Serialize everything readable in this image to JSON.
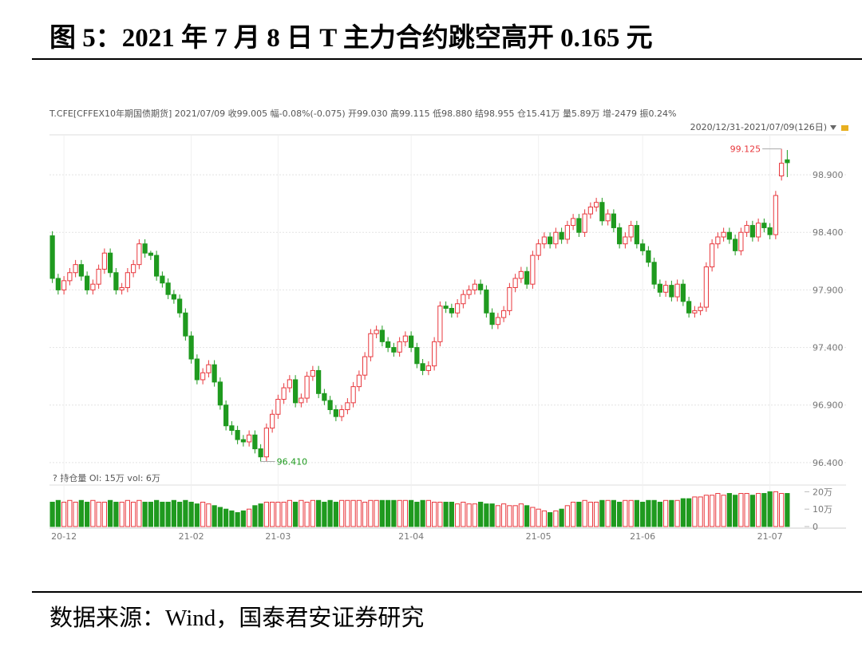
{
  "header": {
    "title": "图 5：2021 年 7 月 8 日 T 主力合约跳空高开 0.165 元"
  },
  "chart_data": {
    "type": "candlestick",
    "info": "T.CFE[CFFEX10年期国债期货]   2021/07/09  收99.005  幅-0.08%(-0.075)  开99.030  高99.115  低98.880  结98.955  仓15.41万  量5.89万  增-2479  振0.24%",
    "range": "2020/12/31-2021/07/09(126日)",
    "volume_title": "?  持仓量 OI: 15万  vol: 6万",
    "up_color": "#e8383d",
    "down_color": "#1f9a1f",
    "grid": true,
    "categories": [
      null,
      null,
      "20-12",
      null,
      null,
      null,
      null,
      null,
      null,
      null,
      null,
      null,
      null,
      null,
      null,
      null,
      null,
      null,
      null,
      null,
      null,
      null,
      null,
      null,
      "21-02",
      null,
      null,
      null,
      null,
      null,
      null,
      null,
      null,
      null,
      null,
      null,
      null,
      null,
      null,
      "21-03",
      null,
      null,
      null,
      null,
      null,
      null,
      null,
      null,
      null,
      null,
      null,
      null,
      null,
      null,
      null,
      null,
      null,
      null,
      null,
      null,
      null,
      null,
      "21-04",
      null,
      null,
      null,
      null,
      null,
      null,
      null,
      null,
      null,
      null,
      null,
      null,
      null,
      null,
      null,
      null,
      null,
      null,
      null,
      null,
      null,
      "21-05",
      null,
      null,
      null,
      null,
      null,
      null,
      null,
      null,
      null,
      null,
      null,
      null,
      null,
      null,
      null,
      null,
      null,
      "21-06",
      null,
      null,
      null,
      null,
      null,
      null,
      null,
      null,
      null,
      null,
      null,
      null,
      null,
      null,
      null,
      null,
      null,
      null,
      null,
      null,
      null,
      "21-07",
      null,
      null,
      null
    ],
    "open": [
      98.37,
      98.0,
      97.9,
      97.98,
      98.05,
      98.12,
      98.02,
      97.9,
      97.95,
      98.08,
      98.22,
      98.05,
      97.9,
      97.92,
      98.05,
      98.12,
      98.3,
      98.22,
      98.2,
      98.02,
      97.96,
      97.86,
      97.82,
      97.7,
      97.5,
      97.3,
      97.12,
      97.18,
      97.25,
      97.1,
      96.9,
      96.72,
      96.68,
      96.6,
      96.58,
      96.64,
      96.52,
      96.45,
      96.7,
      96.82,
      96.95,
      97.05,
      97.12,
      96.92,
      96.96,
      97.15,
      97.2,
      97.0,
      96.94,
      96.86,
      96.8,
      96.86,
      96.92,
      97.06,
      97.16,
      97.32,
      97.52,
      97.55,
      97.45,
      97.4,
      97.36,
      97.45,
      97.5,
      97.4,
      97.26,
      97.2,
      97.24,
      97.45,
      97.76,
      97.74,
      97.7,
      97.78,
      97.86,
      97.9,
      97.95,
      97.9,
      97.7,
      97.6,
      97.66,
      97.72,
      97.92,
      98.0,
      98.06,
      97.95,
      98.2,
      98.3,
      98.36,
      98.3,
      98.4,
      98.34,
      98.46,
      98.52,
      98.4,
      98.56,
      98.62,
      98.66,
      98.5,
      98.56,
      98.44,
      98.3,
      98.36,
      98.46,
      98.3,
      98.24,
      98.14,
      97.95,
      97.88,
      97.94,
      97.84,
      97.95,
      97.8,
      97.7,
      97.72,
      97.75,
      98.1,
      98.3,
      98.36,
      98.4,
      98.34,
      98.24,
      98.4,
      98.46,
      98.36,
      98.48,
      98.44,
      98.38,
      98.89,
      99.03
    ],
    "high": [
      98.41,
      98.04,
      98.02,
      98.09,
      98.16,
      98.16,
      98.06,
      97.99,
      98.12,
      98.26,
      98.26,
      98.09,
      97.96,
      98.09,
      98.16,
      98.34,
      98.34,
      98.24,
      98.24,
      98.06,
      98.0,
      97.9,
      97.86,
      97.74,
      97.54,
      97.34,
      97.22,
      97.29,
      97.29,
      97.14,
      96.94,
      96.76,
      96.72,
      96.64,
      96.68,
      96.68,
      96.56,
      96.74,
      96.86,
      96.99,
      97.09,
      97.16,
      97.16,
      97.0,
      97.19,
      97.24,
      97.24,
      97.04,
      96.98,
      96.9,
      96.9,
      96.96,
      97.1,
      97.2,
      97.36,
      97.56,
      97.59,
      97.59,
      97.49,
      97.44,
      97.49,
      97.54,
      97.54,
      97.44,
      97.3,
      97.28,
      97.49,
      97.8,
      97.8,
      97.78,
      97.82,
      97.9,
      97.94,
      97.99,
      97.99,
      97.94,
      97.74,
      97.7,
      97.76,
      97.96,
      98.04,
      98.1,
      98.1,
      98.24,
      98.34,
      98.4,
      98.4,
      98.44,
      98.44,
      98.5,
      98.56,
      98.56,
      98.6,
      98.66,
      98.7,
      98.7,
      98.6,
      98.6,
      98.48,
      98.4,
      98.5,
      98.5,
      98.34,
      98.28,
      98.18,
      97.99,
      97.98,
      97.98,
      97.99,
      97.99,
      97.84,
      97.76,
      97.79,
      98.14,
      98.34,
      98.4,
      98.44,
      98.44,
      98.38,
      98.44,
      98.5,
      98.5,
      98.52,
      98.52,
      98.48,
      98.76,
      99.125,
      99.115
    ],
    "low": [
      97.96,
      97.86,
      97.86,
      97.94,
      98.01,
      97.98,
      97.86,
      97.86,
      97.91,
      98.04,
      98.01,
      97.86,
      97.86,
      97.88,
      98.01,
      98.08,
      98.18,
      98.16,
      97.98,
      97.92,
      97.82,
      97.78,
      97.66,
      97.46,
      97.26,
      97.08,
      97.08,
      97.14,
      97.06,
      96.86,
      96.68,
      96.64,
      96.56,
      96.54,
      96.54,
      96.48,
      96.41,
      96.41,
      96.66,
      96.78,
      96.91,
      97.01,
      96.88,
      96.88,
      96.92,
      97.11,
      96.96,
      96.9,
      96.82,
      96.76,
      96.76,
      96.82,
      96.88,
      97.02,
      97.12,
      97.28,
      97.48,
      97.41,
      97.36,
      97.32,
      97.32,
      97.41,
      97.36,
      97.22,
      97.16,
      97.16,
      97.2,
      97.41,
      97.7,
      97.66,
      97.66,
      97.74,
      97.82,
      97.86,
      97.86,
      97.66,
      97.56,
      97.56,
      97.62,
      97.68,
      97.88,
      97.96,
      97.91,
      97.91,
      98.16,
      98.26,
      98.26,
      98.26,
      98.3,
      98.3,
      98.42,
      98.36,
      98.36,
      98.52,
      98.58,
      98.46,
      98.46,
      98.4,
      98.26,
      98.26,
      98.32,
      98.26,
      98.2,
      98.1,
      97.91,
      97.84,
      97.84,
      97.8,
      97.8,
      97.76,
      97.66,
      97.66,
      97.68,
      97.71,
      98.06,
      98.26,
      98.32,
      98.3,
      98.2,
      98.2,
      98.36,
      98.32,
      98.32,
      98.4,
      98.34,
      98.34,
      98.85,
      98.88
    ],
    "close": [
      98.0,
      97.9,
      97.98,
      98.05,
      98.12,
      98.02,
      97.9,
      97.95,
      98.08,
      98.22,
      98.05,
      97.9,
      97.92,
      98.05,
      98.12,
      98.3,
      98.22,
      98.2,
      98.02,
      97.96,
      97.86,
      97.82,
      97.7,
      97.5,
      97.3,
      97.12,
      97.18,
      97.25,
      97.1,
      96.9,
      96.72,
      96.68,
      96.6,
      96.58,
      96.64,
      96.52,
      96.45,
      96.7,
      96.82,
      96.95,
      97.05,
      97.12,
      96.92,
      96.96,
      97.15,
      97.2,
      97.0,
      96.94,
      96.86,
      96.8,
      96.86,
      96.92,
      97.06,
      97.16,
      97.32,
      97.52,
      97.55,
      97.45,
      97.4,
      97.36,
      97.45,
      97.5,
      97.4,
      97.26,
      97.2,
      97.24,
      97.45,
      97.76,
      97.74,
      97.7,
      97.78,
      97.86,
      97.9,
      97.95,
      97.9,
      97.7,
      97.6,
      97.66,
      97.72,
      97.92,
      98.0,
      98.06,
      97.95,
      98.2,
      98.3,
      98.36,
      98.3,
      98.4,
      98.34,
      98.46,
      98.52,
      98.4,
      98.56,
      98.62,
      98.66,
      98.5,
      98.56,
      98.44,
      98.3,
      98.36,
      98.46,
      98.3,
      98.24,
      98.14,
      97.95,
      97.88,
      97.94,
      97.84,
      97.95,
      97.8,
      97.7,
      97.72,
      97.75,
      98.1,
      98.3,
      98.36,
      98.4,
      98.34,
      98.24,
      98.4,
      98.46,
      98.36,
      98.48,
      98.44,
      98.38,
      98.72,
      99.0,
      99.005
    ],
    "annotations": [
      {
        "text": "99.125"
      },
      {
        "text": "96.410"
      }
    ],
    "ylim": [
      96.33,
      99.24
    ],
    "yticks": [
      {
        "value": 96.4,
        "label": "96.400"
      },
      {
        "value": 96.9,
        "label": "96.900"
      },
      {
        "value": 97.4,
        "label": "97.400"
      },
      {
        "value": 97.9,
        "label": "97.900"
      },
      {
        "value": 98.4,
        "label": "98.400"
      },
      {
        "value": 98.9,
        "label": "98.900"
      }
    ],
    "volume": [
      14,
      15,
      14,
      15,
      14,
      15,
      14,
      15,
      14,
      14,
      15,
      14,
      14,
      15,
      14,
      15,
      14,
      14,
      15,
      14,
      14,
      15,
      14,
      15,
      14,
      13,
      14,
      13,
      12,
      11,
      10,
      9,
      8,
      9,
      10,
      12,
      13,
      14,
      14,
      14,
      14,
      15,
      14,
      15,
      14,
      15,
      15,
      14,
      15,
      14,
      15,
      15,
      15,
      15,
      14,
      15,
      15,
      15,
      15,
      15,
      15,
      15,
      15,
      14,
      15,
      15,
      14,
      14,
      14,
      14,
      13,
      14,
      13,
      13,
      14,
      13,
      13,
      12,
      13,
      12,
      12,
      13,
      12,
      11,
      10,
      9,
      8,
      9,
      10,
      12,
      14,
      14,
      15,
      14,
      14,
      15,
      15,
      15,
      14,
      15,
      15,
      15,
      14,
      15,
      15,
      14,
      15,
      15,
      15,
      16,
      16,
      17,
      17,
      18,
      18,
      19,
      18,
      19,
      18,
      19,
      19,
      18,
      19,
      19,
      20,
      20,
      19,
      19
    ],
    "vlim": [
      0,
      22
    ],
    "vticks": [
      {
        "value": 0,
        "label": "0"
      },
      {
        "value": 10,
        "label": "10万"
      },
      {
        "value": 20,
        "label": "20万"
      }
    ]
  },
  "source": "数据来源：Wind，国泰君安证券研究"
}
